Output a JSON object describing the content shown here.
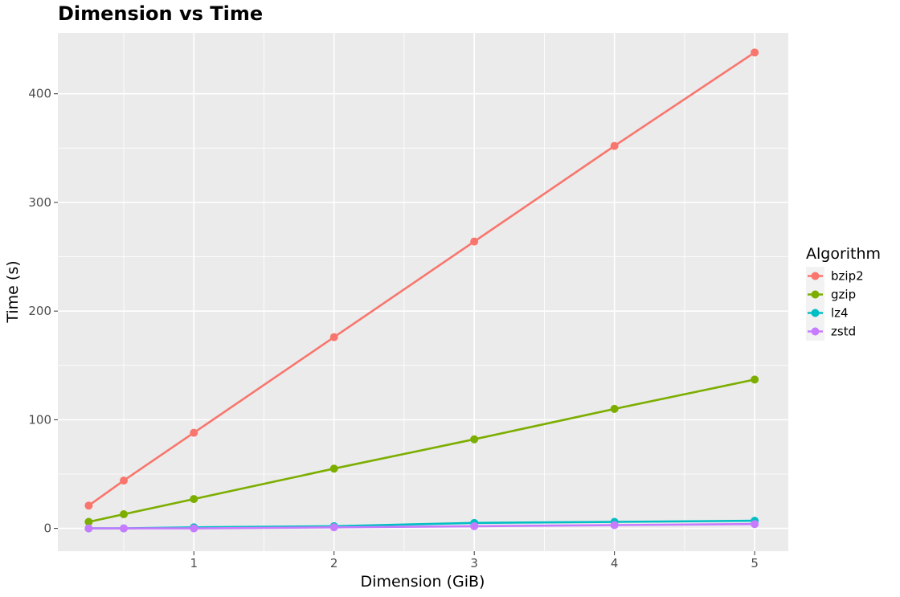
{
  "chart_data": {
    "type": "line",
    "title": "Dimension vs Time",
    "xlabel": "Dimension (GiB)",
    "ylabel": "Time (s)",
    "x": [
      0.25,
      0.5,
      1,
      2,
      3,
      4,
      5
    ],
    "xlim": [
      0.03,
      5.24
    ],
    "ylim": [
      -21,
      456
    ],
    "xticks": [
      1,
      2,
      3,
      4,
      5
    ],
    "xtick_labels": [
      "1",
      "2",
      "3",
      "4",
      "5"
    ],
    "yticks": [
      0,
      100,
      200,
      300,
      400
    ],
    "ytick_labels": [
      "0",
      "100",
      "200",
      "300",
      "400"
    ],
    "grid": true,
    "legend": {
      "title": "Algorithm",
      "position": "right"
    },
    "series": [
      {
        "name": "bzip2",
        "color": "#F8766D",
        "values": [
          21,
          44,
          88,
          176,
          264,
          352,
          438
        ]
      },
      {
        "name": "gzip",
        "color": "#7CAE00",
        "values": [
          6,
          13,
          27,
          55,
          82,
          110,
          137
        ]
      },
      {
        "name": "lz4",
        "color": "#00BFC4",
        "values": [
          0,
          0,
          1,
          2,
          5,
          6,
          7
        ]
      },
      {
        "name": "zstd",
        "color": "#C77CFF",
        "values": [
          0,
          0,
          0,
          1,
          2,
          3,
          4
        ]
      }
    ]
  }
}
